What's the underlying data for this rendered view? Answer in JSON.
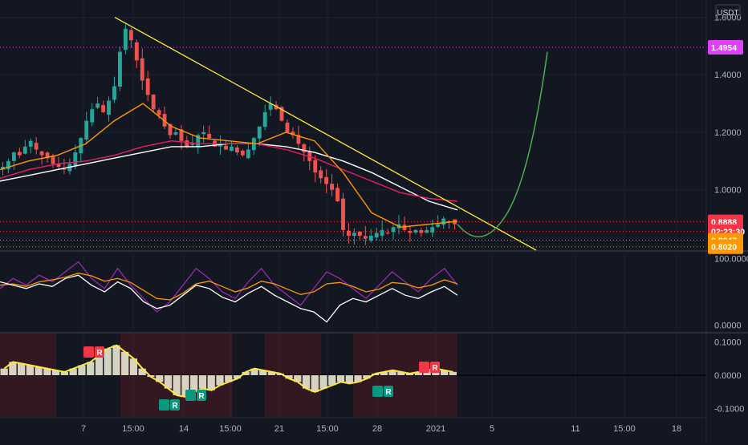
{
  "chart_data": [
    {
      "type": "candlestick",
      "quote_currency": "USDT",
      "y_ticks": [
        "1.6000",
        "1.4000",
        "1.2000",
        "1.0000"
      ],
      "ylim": [
        0.79,
        1.66
      ],
      "x_ticks": [
        "7",
        "15:00",
        "14",
        "15:00",
        "21",
        "15:00",
        "28",
        "2021",
        "5",
        "11",
        "15:00",
        "18"
      ],
      "price_levels": [
        {
          "label": "1.4954",
          "value": 1.4954,
          "color": "#e040fb"
        },
        {
          "label": "0.8888",
          "value": 0.8888,
          "color": "#f23645"
        },
        {
          "label": "02:23:30",
          "value": 0.855,
          "color": "#f23645"
        },
        {
          "label": "0.8247",
          "value": 0.8247,
          "color": "#ff9800"
        },
        {
          "label": "0.8020",
          "value": 0.802,
          "color": "#ff9800"
        }
      ],
      "close_series": [
        1.08,
        1.1,
        1.13,
        1.12,
        1.15,
        1.17,
        1.14,
        1.12,
        1.11,
        1.09,
        1.08,
        1.07,
        1.09,
        1.13,
        1.18,
        1.24,
        1.28,
        1.3,
        1.27,
        1.31,
        1.36,
        1.48,
        1.56,
        1.52,
        1.45,
        1.38,
        1.33,
        1.28,
        1.26,
        1.22,
        1.19,
        1.2,
        1.17,
        1.15,
        1.16,
        1.19,
        1.2,
        1.18,
        1.15,
        1.16,
        1.14,
        1.15,
        1.13,
        1.12,
        1.14,
        1.18,
        1.22,
        1.27,
        1.3,
        1.28,
        1.24,
        1.2,
        1.19,
        1.16,
        1.13,
        1.1,
        1.06,
        1.04,
        1.02,
        1.0,
        0.96,
        0.86,
        0.84,
        0.85,
        0.84,
        0.83,
        0.84,
        0.85,
        0.86,
        0.85,
        0.87,
        0.88,
        0.86,
        0.85,
        0.86,
        0.85,
        0.86,
        0.87,
        0.88,
        0.9,
        0.89,
        0.88
      ],
      "candle_color_up": "#26a69a",
      "candle_color_down": "#ef5350",
      "moving_averages": [
        {
          "color": "#ffffff",
          "values": [
            1.03,
            1.05,
            1.07,
            1.09,
            1.11,
            1.13,
            1.15,
            1.15,
            1.16,
            1.16,
            1.15,
            1.13,
            1.1,
            1.06,
            1.01,
            0.96,
            0.93
          ]
        },
        {
          "color": "#e91e63",
          "values": [
            1.04,
            1.07,
            1.09,
            1.1,
            1.12,
            1.15,
            1.17,
            1.16,
            1.16,
            1.16,
            1.14,
            1.11,
            1.07,
            1.03,
            0.99,
            0.97,
            0.96
          ]
        },
        {
          "color": "#ff9800",
          "values": [
            1.07,
            1.1,
            1.12,
            1.16,
            1.24,
            1.3,
            1.22,
            1.18,
            1.17,
            1.16,
            1.2,
            1.17,
            1.06,
            0.92,
            0.87,
            0.88,
            0.89
          ]
        }
      ],
      "trendline": {
        "color": "#ffeb3b",
        "start": 1.6,
        "end": 0.79
      },
      "projection": {
        "color": "#4caf50",
        "from": 0.88,
        "low": 0.86,
        "to": 1.48
      }
    },
    {
      "type": "line",
      "y_ticks": [
        "100.0000",
        "0.0000"
      ],
      "ylim": [
        -10,
        110
      ],
      "series": [
        {
          "color": "#9c27b0",
          "values": [
            55,
            70,
            60,
            75,
            65,
            80,
            95,
            70,
            55,
            85,
            60,
            40,
            20,
            35,
            60,
            85,
            70,
            50,
            40,
            65,
            85,
            60,
            45,
            30,
            55,
            80,
            70,
            55,
            40,
            60,
            80,
            65,
            50,
            70,
            85,
            60
          ]
        },
        {
          "color": "#ff9800",
          "values": [
            60,
            62,
            58,
            65,
            68,
            72,
            78,
            74,
            66,
            70,
            64,
            52,
            40,
            38,
            48,
            62,
            66,
            58,
            50,
            56,
            66,
            62,
            54,
            46,
            50,
            62,
            64,
            58,
            50,
            54,
            64,
            62,
            56,
            60,
            68,
            62
          ]
        },
        {
          "color": "#ffffff",
          "values": [
            65,
            60,
            55,
            62,
            58,
            70,
            75,
            60,
            50,
            65,
            55,
            35,
            25,
            30,
            45,
            60,
            55,
            42,
            35,
            48,
            58,
            45,
            35,
            25,
            20,
            5,
            30,
            40,
            35,
            45,
            55,
            45,
            40,
            50,
            58,
            45
          ]
        }
      ]
    },
    {
      "type": "histogram",
      "y_ticks": [
        "0.1000",
        "0.0000",
        "-0.1000"
      ],
      "ylim": [
        -0.125,
        0.125
      ],
      "values": [
        0.02,
        0.04,
        0.035,
        0.03,
        0.025,
        0.02,
        0.015,
        0.01,
        0.02,
        0.03,
        0.04,
        0.06,
        0.08,
        0.09,
        0.07,
        0.05,
        0.02,
        -0.005,
        -0.02,
        -0.04,
        -0.06,
        -0.065,
        -0.05,
        -0.04,
        -0.045,
        -0.03,
        -0.02,
        -0.01,
        0.01,
        0.02,
        0.015,
        0.01,
        0.005,
        -0.01,
        -0.02,
        -0.04,
        -0.05,
        -0.04,
        -0.03,
        -0.02,
        -0.025,
        -0.02,
        -0.01,
        0.005,
        0.01,
        0.015,
        0.01,
        0.005,
        0.01,
        0.015,
        0.02,
        0.015,
        0.01
      ],
      "signals": [
        {
          "label": "R",
          "kind": "bear",
          "color": "#f23645"
        },
        {
          "label": "R",
          "kind": "bull",
          "color": "#089981"
        },
        {
          "label": "R",
          "kind": "bull",
          "color": "#089981"
        },
        {
          "label": "R",
          "kind": "bull",
          "color": "#089981"
        },
        {
          "label": "R",
          "kind": "bear",
          "color": "#f23645"
        }
      ]
    }
  ]
}
